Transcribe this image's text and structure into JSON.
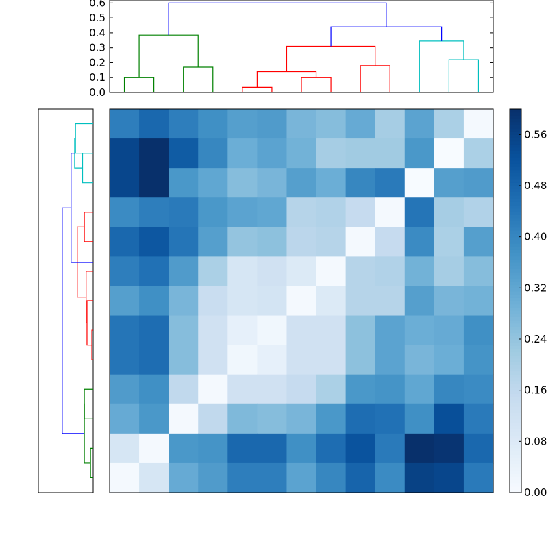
{
  "chart_data": [
    {
      "type": "heatmap",
      "title": "",
      "xlabel": "",
      "ylabel": "",
      "rows": 13,
      "cols": 13,
      "values": [
        [
          0.42,
          0.47,
          0.42,
          0.38,
          0.34,
          0.35,
          0.28,
          0.26,
          0.31,
          0.21,
          0.33,
          0.2,
          0.01
        ],
        [
          0.55,
          0.6,
          0.5,
          0.4,
          0.3,
          0.33,
          0.29,
          0.21,
          0.22,
          0.22,
          0.36,
          0.0,
          0.2
        ],
        [
          0.55,
          0.6,
          0.36,
          0.32,
          0.26,
          0.28,
          0.34,
          0.3,
          0.4,
          0.43,
          0.0,
          0.34,
          0.35
        ],
        [
          0.39,
          0.42,
          0.43,
          0.36,
          0.33,
          0.32,
          0.18,
          0.19,
          0.15,
          0.01,
          0.44,
          0.21,
          0.19
        ],
        [
          0.47,
          0.51,
          0.44,
          0.34,
          0.24,
          0.25,
          0.17,
          0.18,
          0.01,
          0.15,
          0.39,
          0.2,
          0.34
        ],
        [
          0.42,
          0.45,
          0.35,
          0.2,
          0.1,
          0.12,
          0.08,
          0.01,
          0.18,
          0.19,
          0.29,
          0.21,
          0.26
        ],
        [
          0.34,
          0.38,
          0.28,
          0.14,
          0.1,
          0.11,
          0.01,
          0.08,
          0.18,
          0.18,
          0.34,
          0.28,
          0.29
        ],
        [
          0.44,
          0.46,
          0.26,
          0.12,
          0.05,
          0.02,
          0.12,
          0.12,
          0.25,
          0.33,
          0.3,
          0.31,
          0.38
        ],
        [
          0.44,
          0.46,
          0.26,
          0.12,
          0.02,
          0.05,
          0.12,
          0.12,
          0.25,
          0.33,
          0.28,
          0.3,
          0.37
        ],
        [
          0.35,
          0.38,
          0.16,
          0.01,
          0.12,
          0.12,
          0.15,
          0.2,
          0.36,
          0.37,
          0.32,
          0.4,
          0.39
        ],
        [
          0.31,
          0.36,
          0.01,
          0.16,
          0.27,
          0.26,
          0.28,
          0.36,
          0.46,
          0.45,
          0.38,
          0.53,
          0.43
        ],
        [
          0.1,
          0.01,
          0.36,
          0.37,
          0.47,
          0.47,
          0.38,
          0.46,
          0.52,
          0.43,
          0.6,
          0.59,
          0.47
        ],
        [
          0.01,
          0.1,
          0.31,
          0.35,
          0.42,
          0.42,
          0.33,
          0.4,
          0.48,
          0.39,
          0.56,
          0.55,
          0.43
        ]
      ],
      "colorscale": {
        "name": "Blues",
        "min": 0.0,
        "max": 0.6,
        "stops": [
          "#f7fbff",
          "#deebf7",
          "#c6dbef",
          "#9ecae1",
          "#6baed6",
          "#4292c6",
          "#2171b5",
          "#08519c",
          "#08306b"
        ],
        "ticks": [
          "0.00",
          "0.08",
          "0.16",
          "0.24",
          "0.32",
          "0.40",
          "0.48",
          "0.56"
        ]
      }
    },
    {
      "type": "dendrogram",
      "orientation": "top",
      "yticks": [
        "0.0",
        "0.1",
        "0.2",
        "0.3",
        "0.4",
        "0.5",
        "0.6"
      ],
      "ylim": [
        0,
        0.62
      ],
      "links": [
        {
          "x": [
            1,
            2
          ],
          "height": 0.1,
          "color": "#008000"
        },
        {
          "x": [
            3,
            4
          ],
          "height": 0.17,
          "color": "#008000"
        },
        {
          "x": [
            1.5,
            3.5
          ],
          "height": 0.385,
          "color": "#008000"
        },
        {
          "x": [
            5,
            6
          ],
          "height": 0.035,
          "color": "#ff0000"
        },
        {
          "x": [
            7,
            8
          ],
          "height": 0.1,
          "color": "#ff0000"
        },
        {
          "x": [
            5.5,
            7.5
          ],
          "height": 0.14,
          "color": "#ff0000"
        },
        {
          "x": [
            9,
            10
          ],
          "height": 0.18,
          "color": "#ff0000"
        },
        {
          "x": [
            6.5,
            9.5
          ],
          "height": 0.31,
          "color": "#ff0000"
        },
        {
          "x": [
            12,
            13
          ],
          "height": 0.22,
          "color": "#00bfbf"
        },
        {
          "x": [
            11,
            12.5
          ],
          "height": 0.345,
          "color": "#00bfbf"
        },
        {
          "x": [
            8,
            11.75
          ],
          "height": 0.44,
          "color": "#0000ff"
        },
        {
          "x": [
            2.5,
            9.875
          ],
          "height": 0.6,
          "color": "#0000ff"
        }
      ]
    },
    {
      "type": "dendrogram",
      "orientation": "left",
      "ylim": [
        0,
        0.62
      ],
      "links": [
        {
          "y": [
            1,
            2
          ],
          "height": 0.03,
          "color": "#008000"
        },
        {
          "y": [
            3,
            4
          ],
          "height": 0.1,
          "color": "#008000"
        },
        {
          "y": [
            1.5,
            3.5
          ],
          "height": 0.1,
          "color": "#008000"
        },
        {
          "y": [
            5,
            6
          ],
          "height": 0.015,
          "color": "#ff0000"
        },
        {
          "y": [
            5.5,
            7
          ],
          "height": 0.07,
          "color": "#ff0000"
        },
        {
          "y": [
            6.25,
            8
          ],
          "height": 0.08,
          "color": "#ff0000"
        },
        {
          "y": [
            9,
            10
          ],
          "height": 0.1,
          "color": "#ff0000"
        },
        {
          "y": [
            7.125,
            9.5
          ],
          "height": 0.18,
          "color": "#ff0000"
        },
        {
          "y": [
            11,
            12
          ],
          "height": 0.12,
          "color": "#00bfbf"
        },
        {
          "y": [
            12,
            13
          ],
          "height": 0.2,
          "color": "#00bfbf"
        },
        {
          "y": [
            11.5,
            12.5
          ],
          "height": 0.21,
          "color": "#00bfbf"
        },
        {
          "y": [
            8.3,
            12
          ],
          "height": 0.25,
          "color": "#0000ff"
        },
        {
          "y": [
            2.5,
            10.15
          ],
          "height": 0.35,
          "color": "#0000ff"
        }
      ]
    }
  ]
}
